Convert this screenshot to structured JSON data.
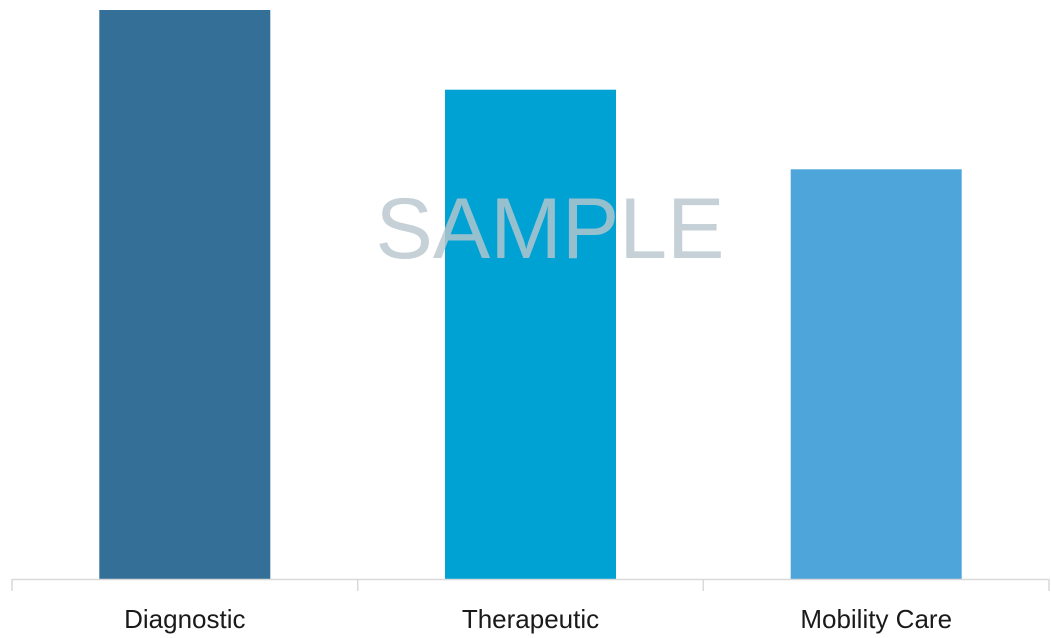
{
  "chart_data": {
    "type": "bar",
    "categories": [
      "Diagnostic",
      "Therapeutic",
      "Mobility Care"
    ],
    "values": [
      100,
      86,
      72
    ],
    "colors": [
      "#336f96",
      "#00a2d4",
      "#4ea5da"
    ],
    "ylim": [
      0,
      100
    ],
    "grid": false,
    "legend": "none"
  },
  "watermark": "SAMPLE"
}
